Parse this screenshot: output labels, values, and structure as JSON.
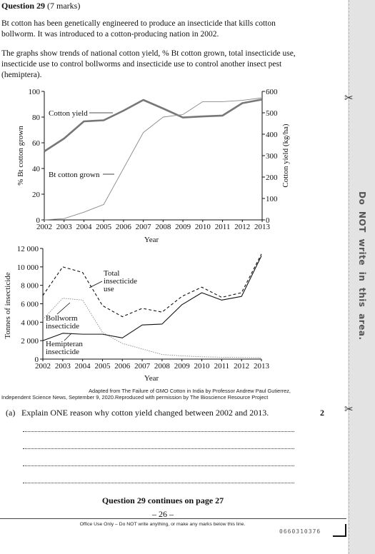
{
  "question": {
    "title": "Question 29",
    "marks": "(7 marks)",
    "intro": "Bt cotton has been genetically engineered to produce an insecticide that kills cotton bollworm. It was introduced to a cotton-producing nation in 2002.",
    "description": "The graphs show trends of national cotton yield, % Bt cotton grown, total insecticide use, insecticide use to control bollworms and insecticide use to control another insect pest (hemiptera)."
  },
  "chart_data": [
    {
      "type": "line",
      "x": [
        2002,
        2003,
        2004,
        2005,
        2006,
        2007,
        2008,
        2009,
        2010,
        2011,
        2012,
        2013
      ],
      "xlabel": "Year",
      "ylabel": "% Bt cotton grown",
      "ylabel_right": "Cotton yield (kg/ha)",
      "ylim": [
        0,
        100
      ],
      "ylim_right": [
        0,
        600
      ],
      "yticks": [
        0,
        20,
        40,
        60,
        80,
        100
      ],
      "yticks_right": [
        0,
        100,
        200,
        300,
        400,
        500,
        600
      ],
      "grid": false,
      "series": [
        {
          "name": "Cotton yield",
          "axis": "right",
          "color": "#777777",
          "values": [
            320,
            380,
            460,
            465,
            510,
            560,
            520,
            478,
            483,
            487,
            545,
            562
          ]
        },
        {
          "name": "Bt cotton grown",
          "axis": "left",
          "color": "#8a8a8a",
          "values": [
            0,
            1,
            6,
            12,
            40,
            68,
            80,
            82,
            92,
            92,
            93,
            95
          ]
        }
      ]
    },
    {
      "type": "line",
      "x": [
        2002,
        2003,
        2004,
        2005,
        2006,
        2007,
        2008,
        2009,
        2010,
        2011,
        2012,
        2013
      ],
      "xlabel": "Year",
      "ylabel": "Tonnes of insecticide",
      "ylim": [
        0,
        12000
      ],
      "yticks": [
        0,
        2000,
        4000,
        6000,
        8000,
        10000,
        12000
      ],
      "ytick_labels": [
        "0",
        "2 000",
        "4 000",
        "6 000",
        "8 000",
        "10 000",
        "12 000"
      ],
      "grid": false,
      "series": [
        {
          "name": "Total insecticide use",
          "style": "dashed",
          "color": "#111111",
          "values": [
            6900,
            10000,
            9400,
            5800,
            4600,
            5500,
            5100,
            6800,
            7800,
            6700,
            7200,
            11400
          ]
        },
        {
          "name": "Bollworm insecticide",
          "style": "dotted",
          "color": "#8a8a8a",
          "values": [
            4300,
            6600,
            6400,
            2900,
            1700,
            1100,
            500,
            350,
            250,
            200,
            180,
            150
          ]
        },
        {
          "name": "Hemipteran insecticide",
          "style": "solid",
          "color": "#111111",
          "values": [
            2000,
            2800,
            2700,
            2700,
            2300,
            3700,
            3800,
            5900,
            7200,
            6400,
            6800,
            11200
          ]
        }
      ]
    }
  ],
  "source": {
    "line1": "Adapted from The Failure of GMO Cotton in India by Professor Andrew Paul Gutierrez,",
    "line2": "Independent Science News, September 9, 2020.Reproduced with permission by The Bioscience Resource Project"
  },
  "part_a": {
    "label": "(a)",
    "text": "Explain ONE reason why cotton yield changed between 2002 and 2013.",
    "marks": "2"
  },
  "answer_lines": [
    "",
    "",
    "",
    ""
  ],
  "footer": {
    "continues": "Question 29 continues on page 27",
    "page_number": "– 26 –",
    "office_use": "Office Use Only – Do NOT write anything, or make any marks below this line.",
    "barcode_number": "0660310376"
  },
  "margin": {
    "warning": "Do NOT write in this area.",
    "scissors_icon": "scissors-icon"
  }
}
